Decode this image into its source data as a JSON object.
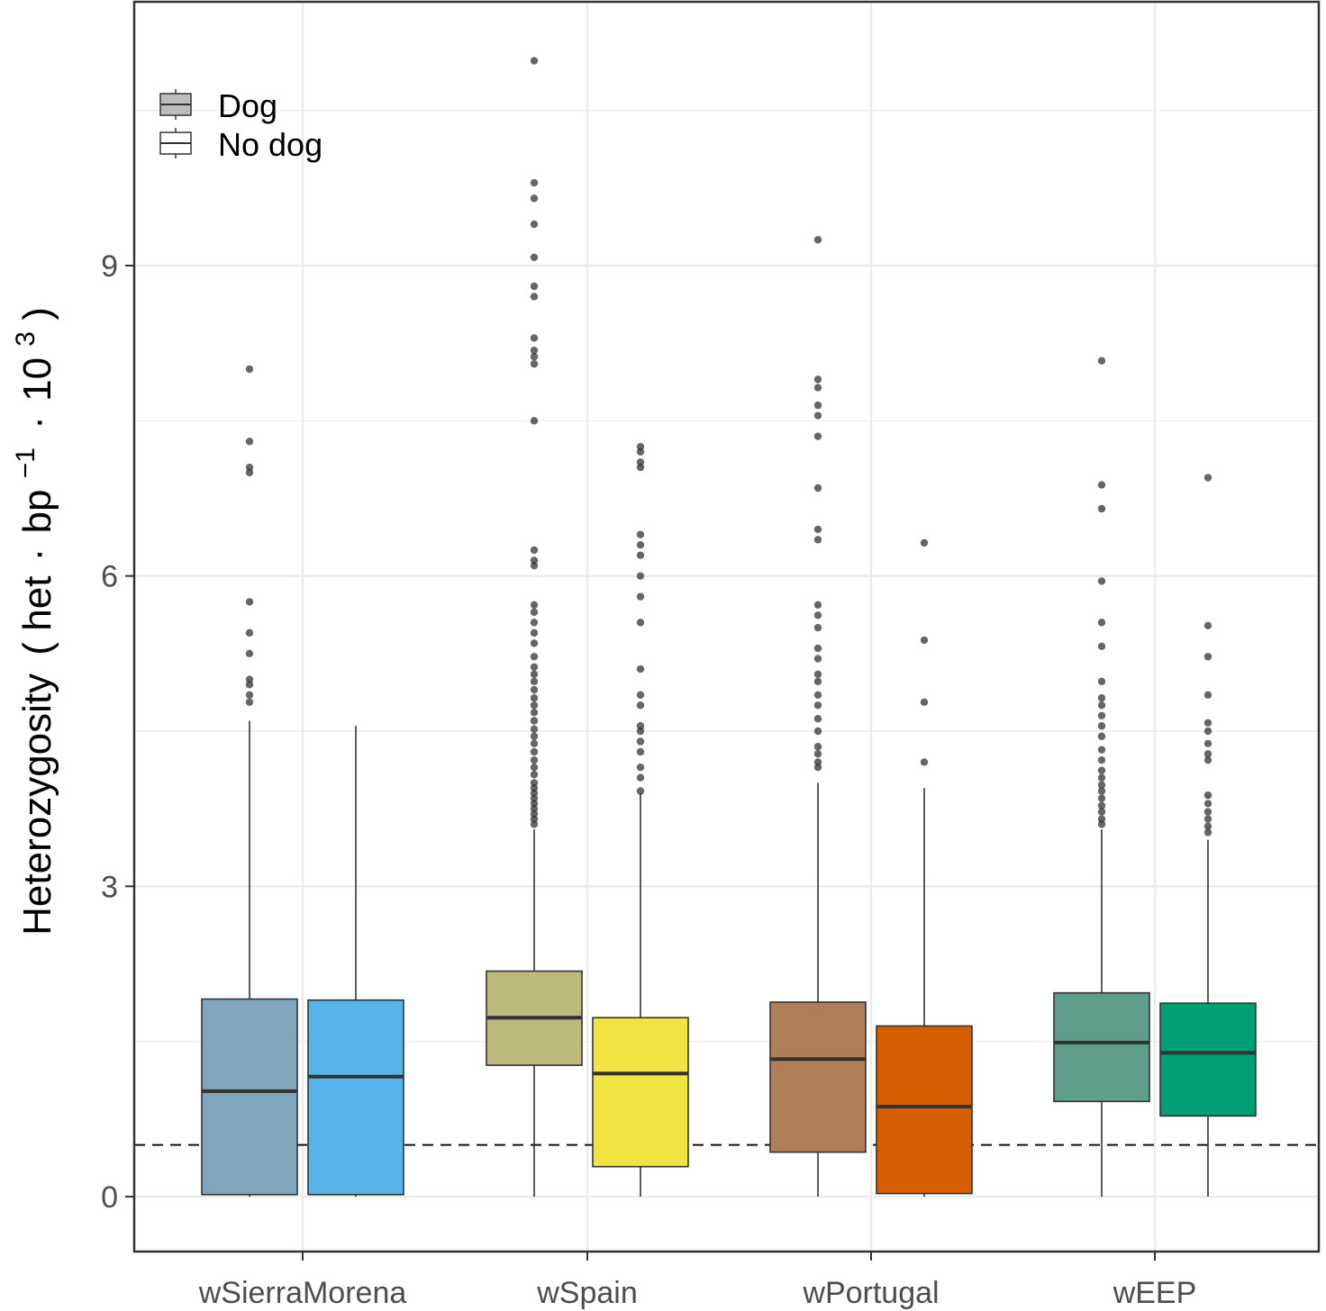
{
  "chart_data": {
    "type": "boxplot",
    "title": "",
    "xlabel": "",
    "ylabel": {
      "main": "Heterozygosity",
      "open_paren": "(",
      "close_paren": ")",
      "het": "het",
      "dot1": "·",
      "bp": "bp",
      "bp_exp": "−1",
      "dot2": "·",
      "ten": "10",
      "ten_exp": "3"
    },
    "ylim": [
      -0.55,
      11.45
    ],
    "yticks": [
      0,
      3,
      6,
      9
    ],
    "yminor": [
      1.5,
      4.5,
      7.5,
      10.5
    ],
    "categories": [
      "wSierraMorena",
      "wSpain",
      "wPortugal",
      "wEEP"
    ],
    "legend": {
      "position": "top-left",
      "entries": [
        {
          "label": "Dog",
          "fill": "#bdbdbd"
        },
        {
          "label": "No dog",
          "fill": "#ffffff"
        }
      ]
    },
    "reference_line": {
      "y": 0.5,
      "style": "dashed"
    },
    "grid": true,
    "boxes": [
      {
        "category": "wSierraMorena",
        "group": "Dog",
        "fill": "#7fa6bd",
        "q1": 0.02,
        "median": 1.02,
        "q3": 1.91,
        "whisker_low": 0,
        "whisker_high": 4.6,
        "outliers": [
          8.0,
          7.3,
          7.05,
          7.0,
          5.75,
          5.45,
          5.25,
          5.0,
          4.95,
          4.85,
          4.78
        ]
      },
      {
        "category": "wSierraMorena",
        "group": "No dog",
        "fill": "#56b4e9",
        "q1": 0.02,
        "median": 1.16,
        "q3": 1.9,
        "whisker_low": 0,
        "whisker_high": 4.55,
        "outliers": []
      },
      {
        "category": "wSpain",
        "group": "Dog",
        "fill": "#bdb87b",
        "q1": 1.27,
        "median": 1.73,
        "q3": 2.18,
        "whisker_low": 0,
        "whisker_high": 3.55,
        "outliers": [
          10.98,
          9.8,
          9.65,
          9.4,
          9.08,
          8.8,
          8.7,
          8.3,
          8.18,
          8.12,
          8.05,
          7.5,
          6.25,
          6.15,
          6.1,
          5.72,
          5.65,
          5.55,
          5.45,
          5.35,
          5.22,
          5.12,
          5.05,
          4.98,
          4.9,
          4.82,
          4.75,
          4.68,
          4.6,
          4.52,
          4.45,
          4.38,
          4.3,
          4.22,
          4.15,
          4.08,
          4.0,
          3.95,
          3.9,
          3.85,
          3.8,
          3.75,
          3.7,
          3.65,
          3.6
        ]
      },
      {
        "category": "wSpain",
        "group": "No dog",
        "fill": "#f0e442",
        "q1": 0.29,
        "median": 1.19,
        "q3": 1.73,
        "whisker_low": 0,
        "whisker_high": 3.9,
        "outliers": [
          7.25,
          7.2,
          7.1,
          7.05,
          6.4,
          6.3,
          6.2,
          6.0,
          5.8,
          5.55,
          5.1,
          4.85,
          4.75,
          4.55,
          4.5,
          4.4,
          4.3,
          4.15,
          4.05,
          3.92
        ]
      },
      {
        "category": "wPortugal",
        "group": "Dog",
        "fill": "#b07f59",
        "q1": 0.43,
        "median": 1.33,
        "q3": 1.88,
        "whisker_low": 0,
        "whisker_high": 4.0,
        "outliers": [
          9.25,
          7.9,
          7.82,
          7.65,
          7.55,
          7.35,
          6.85,
          6.45,
          6.35,
          5.72,
          5.62,
          5.5,
          5.3,
          5.2,
          5.05,
          4.98,
          4.85,
          4.75,
          4.62,
          4.5,
          4.35,
          4.28,
          4.2,
          4.15
        ]
      },
      {
        "category": "wPortugal",
        "group": "No dog",
        "fill": "#d55e00",
        "q1": 0.03,
        "median": 0.87,
        "q3": 1.65,
        "whisker_low": 0,
        "whisker_high": 3.95,
        "outliers": [
          6.32,
          5.38,
          4.78,
          4.2
        ]
      },
      {
        "category": "wEEP",
        "group": "Dog",
        "fill": "#5e9e8a",
        "q1": 0.92,
        "median": 1.49,
        "q3": 1.97,
        "whisker_low": 0,
        "whisker_high": 3.55,
        "outliers": [
          8.08,
          6.88,
          6.65,
          5.95,
          5.55,
          5.32,
          4.98,
          4.82,
          4.75,
          4.65,
          4.55,
          4.45,
          4.32,
          4.22,
          4.12,
          4.05,
          3.98,
          3.92,
          3.85,
          3.78,
          3.72,
          3.65,
          3.6
        ]
      },
      {
        "category": "wEEP",
        "group": "No dog",
        "fill": "#009e73",
        "q1": 0.78,
        "median": 1.39,
        "q3": 1.87,
        "whisker_low": 0,
        "whisker_high": 3.45,
        "outliers": [
          6.95,
          5.52,
          5.22,
          4.85,
          4.58,
          4.5,
          4.38,
          4.28,
          4.22,
          3.88,
          3.8,
          3.72,
          3.65,
          3.58,
          3.52
        ]
      }
    ]
  }
}
